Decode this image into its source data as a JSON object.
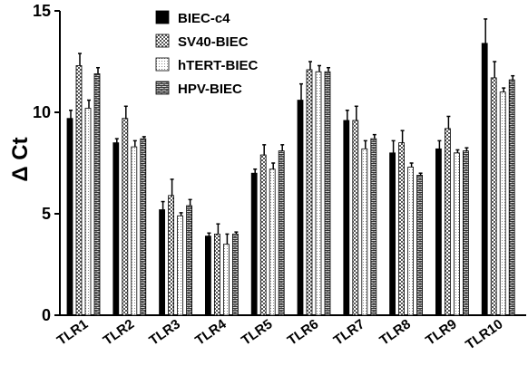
{
  "chart_data": {
    "type": "bar",
    "ylabel": "Δ Ct",
    "ylim": [
      0,
      15
    ],
    "yticks": [
      0,
      5,
      10,
      15
    ],
    "categories": [
      "TLR1",
      "TLR2",
      "TLR3",
      "TLR4",
      "TLR5",
      "TLR6",
      "TLR7",
      "TLR8",
      "TLR9",
      "TLR10"
    ],
    "legend_position": "top-center",
    "series": [
      {
        "name": "BIEC-c4",
        "pattern": "solid",
        "color": "#000000",
        "values": [
          9.7,
          8.5,
          5.2,
          3.9,
          7.0,
          10.6,
          9.6,
          8.0,
          8.2,
          13.4
        ],
        "errors": [
          0.4,
          0.2,
          0.4,
          0.15,
          0.2,
          0.8,
          0.5,
          0.6,
          0.4,
          1.2
        ]
      },
      {
        "name": "SV40-BIEC",
        "pattern": "checker",
        "values": [
          12.3,
          9.7,
          5.9,
          4.0,
          7.9,
          12.1,
          9.6,
          8.5,
          9.2,
          11.7
        ],
        "errors": [
          0.6,
          0.6,
          0.8,
          0.5,
          0.5,
          0.4,
          0.7,
          0.6,
          0.6,
          0.8
        ]
      },
      {
        "name": "hTERT-BIEC",
        "pattern": "dots",
        "values": [
          10.2,
          8.3,
          4.9,
          3.5,
          7.2,
          12.0,
          8.2,
          7.3,
          8.0,
          11.0
        ],
        "errors": [
          0.4,
          0.3,
          0.15,
          0.5,
          0.3,
          0.3,
          0.4,
          0.2,
          0.15,
          0.2
        ]
      },
      {
        "name": "HPV-BIEC",
        "pattern": "brick",
        "values": [
          11.9,
          8.7,
          5.4,
          4.0,
          8.1,
          12.0,
          8.7,
          6.9,
          8.1,
          11.6
        ],
        "errors": [
          0.3,
          0.1,
          0.3,
          0.1,
          0.3,
          0.2,
          0.2,
          0.1,
          0.15,
          0.2
        ]
      }
    ]
  }
}
